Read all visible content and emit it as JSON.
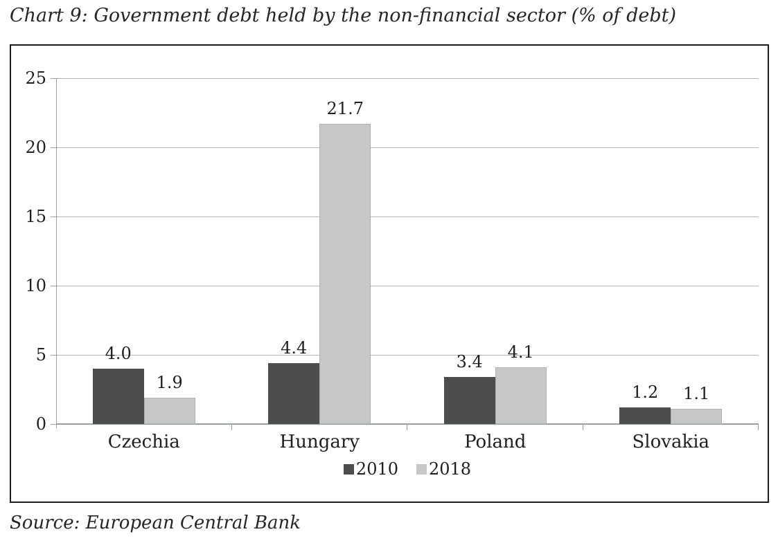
{
  "title": "Chart 9: Government debt held by the non-financial sector (% of debt)",
  "source": "Source: European Central Bank",
  "chart_data": {
    "type": "bar",
    "categories": [
      "Czechia",
      "Hungary",
      "Poland",
      "Slovakia"
    ],
    "series": [
      {
        "name": "2010",
        "color": "#4b4d4f",
        "values": [
          4.0,
          4.4,
          3.4,
          1.2
        ],
        "labels": [
          "4.0",
          "4.4",
          "3.4",
          "1.2"
        ]
      },
      {
        "name": "2018",
        "color": "#c5c7c9",
        "values": [
          1.9,
          21.7,
          4.1,
          1.1
        ],
        "labels": [
          "1.9",
          "21.7",
          "4.1",
          "1.1"
        ]
      }
    ],
    "ylim": [
      0,
      25
    ],
    "yticks": [
      0,
      5,
      10,
      15,
      20,
      25
    ],
    "grid": true,
    "legend_position": "bottom-center",
    "xlabel": "",
    "ylabel": ""
  },
  "style": {
    "text_color": "#1f1f1f",
    "grid_color": "#b2b8bc",
    "axis_color": "#98a0a4",
    "box_border_color": "#1c1c1c",
    "background": "#ffffff"
  }
}
